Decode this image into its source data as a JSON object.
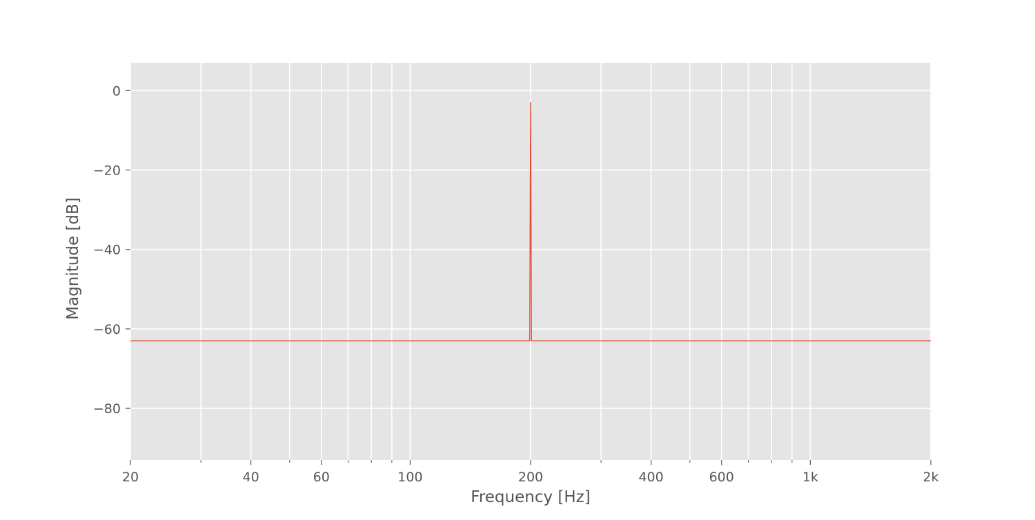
{
  "chart_data": {
    "type": "line",
    "title": "",
    "xlabel": "Frequency [Hz]",
    "ylabel": "Magnitude [dB]",
    "x_scale": "log",
    "xlim": [
      20,
      2000
    ],
    "ylim": [
      -93,
      7
    ],
    "grid": true,
    "x_major_ticks": [
      {
        "value": 20,
        "label": "20"
      },
      {
        "value": 40,
        "label": "40"
      },
      {
        "value": 60,
        "label": "60"
      },
      {
        "value": 100,
        "label": "100"
      },
      {
        "value": 200,
        "label": "200"
      },
      {
        "value": 400,
        "label": "400"
      },
      {
        "value": 600,
        "label": "600"
      },
      {
        "value": 1000,
        "label": "1k"
      },
      {
        "value": 2000,
        "label": "2k"
      }
    ],
    "x_minor_ticks": [
      30,
      50,
      70,
      80,
      90,
      300,
      500,
      700,
      800,
      900
    ],
    "y_ticks": [
      {
        "value": 0,
        "label": "0"
      },
      {
        "value": -20,
        "label": "−20"
      },
      {
        "value": -40,
        "label": "−40"
      },
      {
        "value": -60,
        "label": "−60"
      },
      {
        "value": -80,
        "label": "−80"
      }
    ],
    "series": [
      {
        "color": "#E24A33",
        "x": [
          20,
          199,
          200,
          201,
          2000
        ],
        "y": [
          -63,
          -63,
          -3,
          -63,
          -63
        ]
      }
    ]
  },
  "colors": {
    "plot_background": "#E5E5E5",
    "grid": "#FFFFFF",
    "tick_text": "#555555",
    "axis_label": "#555555"
  }
}
